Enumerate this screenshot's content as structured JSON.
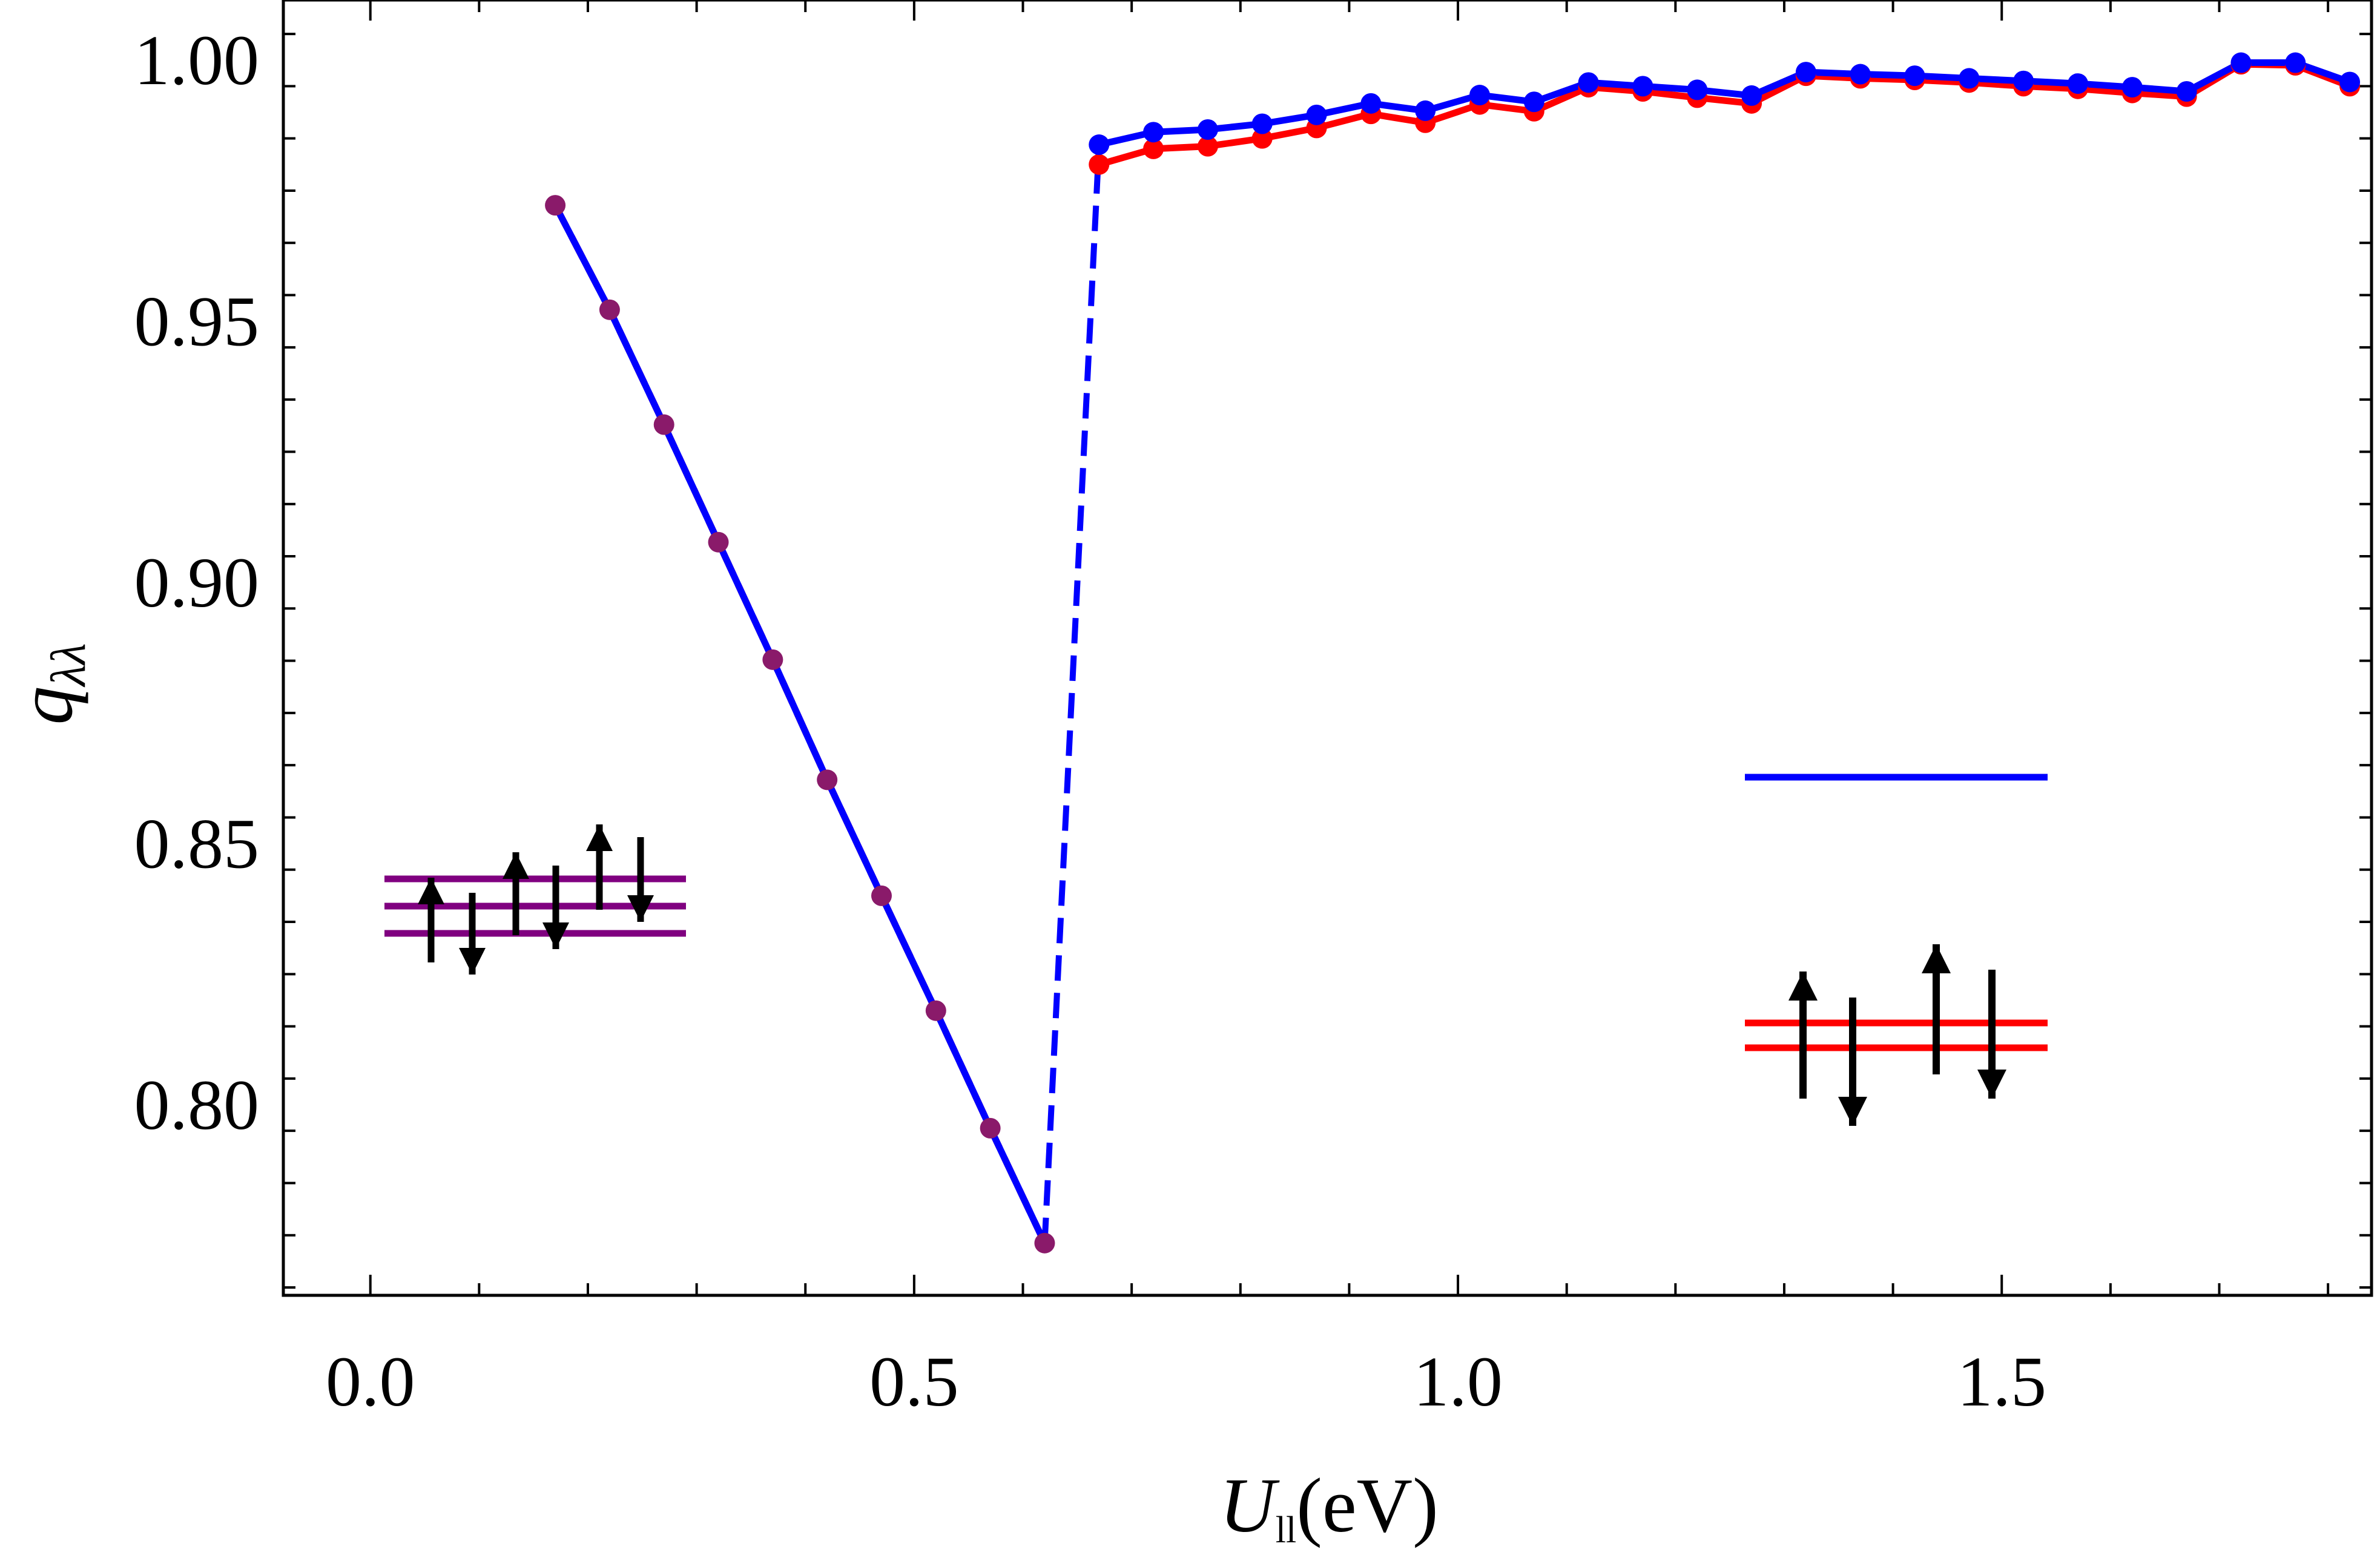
{
  "chart_data": {
    "type": "line",
    "xlabel_main": "U",
    "xlabel_sub": "ll",
    "xlabel_unit": "(eV)",
    "ylabel_main": "q",
    "ylabel_sub": "λλ",
    "xlim": [
      -0.08,
      1.84
    ],
    "ylim": [
      0.7635,
      1.0115
    ],
    "xticks": [
      0.0,
      0.5,
      1.0,
      1.5
    ],
    "xtick_labels": [
      "0.0",
      "0.5",
      "1.0",
      "1.5"
    ],
    "yticks": [
      0.8,
      0.85,
      0.9,
      0.95,
      1.0
    ],
    "ytick_labels": [
      "0.80",
      "0.85",
      "0.90",
      "0.95",
      "1.00"
    ],
    "grid": false,
    "series": [
      {
        "color": "#ff0000",
        "x": [
          0.17,
          0.22,
          0.27,
          0.32,
          0.37,
          0.42,
          0.47,
          0.52,
          0.57,
          0.62,
          0.67,
          0.72,
          0.77,
          0.82,
          0.87,
          0.92,
          0.97,
          1.02,
          1.07,
          1.12,
          1.17,
          1.22,
          1.27,
          1.32,
          1.37,
          1.42,
          1.47,
          1.52,
          1.57,
          1.62,
          1.67,
          1.72,
          1.77,
          1.82
        ],
        "y": [
          0.9722,
          0.9522,
          0.9302,
          0.9077,
          0.8852,
          0.8622,
          0.84,
          0.818,
          0.7955,
          0.7735,
          0.98,
          0.983,
          0.9835,
          0.985,
          0.987,
          0.9897,
          0.988,
          0.9915,
          0.9902,
          0.9948,
          0.994,
          0.9928,
          0.9917,
          0.997,
          0.9965,
          0.9962,
          0.9957,
          0.995,
          0.9945,
          0.9937,
          0.993,
          0.9992,
          0.999,
          0.995
        ]
      },
      {
        "color": "#0000ff",
        "x": [
          0.17,
          0.22,
          0.27,
          0.32,
          0.37,
          0.42,
          0.47,
          0.52,
          0.57,
          0.62,
          0.67,
          0.72,
          0.77,
          0.82,
          0.87,
          0.92,
          0.97,
          1.02,
          1.07,
          1.12,
          1.17,
          1.22,
          1.27,
          1.32,
          1.37,
          1.42,
          1.47,
          1.52,
          1.57,
          1.62,
          1.67,
          1.72,
          1.77,
          1.82
        ],
        "y": [
          0.9722,
          0.9522,
          0.9302,
          0.9077,
          0.8852,
          0.8622,
          0.84,
          0.818,
          0.7955,
          0.7735,
          0.9838,
          0.9862,
          0.9867,
          0.9878,
          0.9895,
          0.9917,
          0.9903,
          0.9933,
          0.992,
          0.9957,
          0.995,
          0.9943,
          0.9932,
          0.9977,
          0.9973,
          0.997,
          0.9965,
          0.996,
          0.9955,
          0.9948,
          0.994,
          0.9995,
          0.9995,
          0.9958
        ]
      }
    ],
    "jump": {
      "x": [
        0.62,
        0.67
      ],
      "y": [
        0.7735,
        0.9838
      ],
      "style": "dashed",
      "color": "#0000ff"
    },
    "insets": {
      "left_levels_color": "#800080",
      "right_levels_color": "#ff0000",
      "legend_line_color": "#0000ff"
    }
  }
}
